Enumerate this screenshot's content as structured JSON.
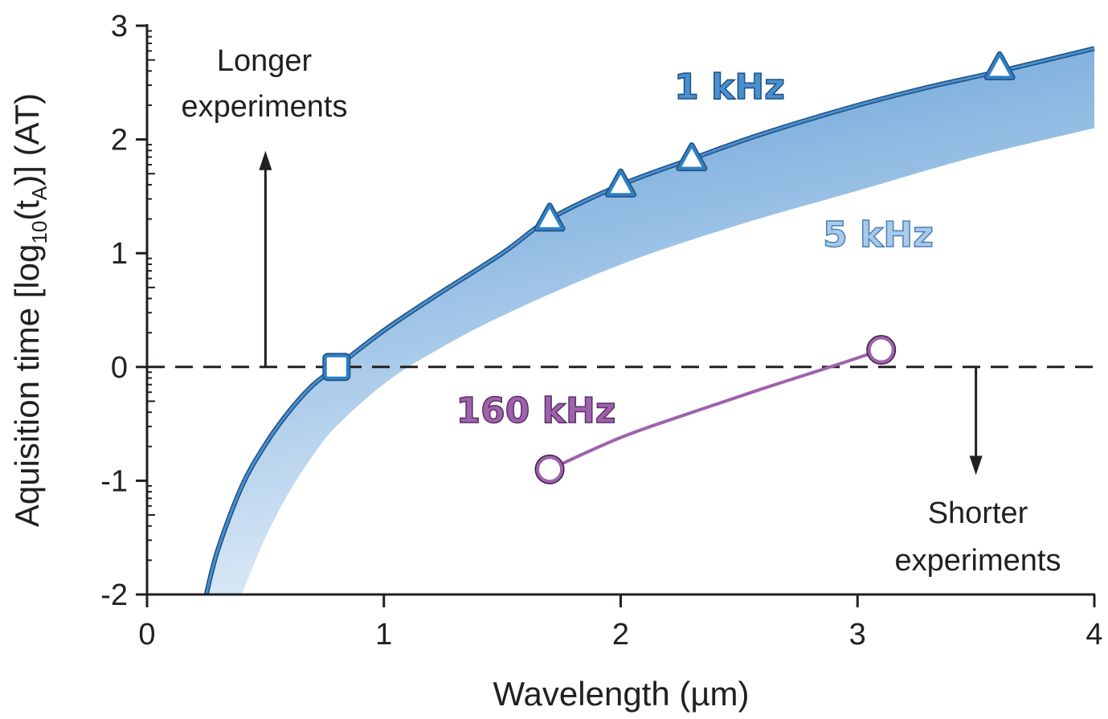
{
  "chart_data": {
    "type": "line",
    "title": "",
    "xlabel": "Wavelength (µm)",
    "ylabel_parts": {
      "pre": "Aquisition time [log",
      "sub1": "10",
      "mid": "(t",
      "sub2": "A",
      "post": ")] (AT)"
    },
    "xlim": [
      0,
      4
    ],
    "ylim": [
      -2,
      3
    ],
    "x_ticks": [
      "0",
      "1",
      "2",
      "3",
      "4"
    ],
    "y_ticks": [
      "-2",
      "-1",
      "0",
      "1",
      "2",
      "3"
    ],
    "reference_line": {
      "y": 0,
      "style": "dashed"
    },
    "series": [
      {
        "name": "1 kHz",
        "color": "#4a8fd0",
        "marker_color": "#2f7fc4",
        "curve_x": [
          0.25,
          0.3,
          0.4,
          0.5,
          0.6,
          0.7,
          0.8,
          1.0,
          1.2,
          1.5,
          1.7,
          2.0,
          2.3,
          2.6,
          3.0,
          3.3,
          3.6,
          4.0
        ],
        "curve_y": [
          -2.0,
          -1.6,
          -1.05,
          -0.68,
          -0.39,
          -0.16,
          0.0,
          0.32,
          0.6,
          1.0,
          1.3,
          1.6,
          1.83,
          2.05,
          2.3,
          2.46,
          2.6,
          2.8
        ],
        "markers": [
          {
            "x": 0.8,
            "y": 0.0,
            "shape": "square"
          },
          {
            "x": 1.7,
            "y": 1.3,
            "shape": "triangle"
          },
          {
            "x": 2.0,
            "y": 1.6,
            "shape": "triangle"
          },
          {
            "x": 2.3,
            "y": 1.83,
            "shape": "triangle"
          },
          {
            "x": 3.6,
            "y": 2.63,
            "shape": "triangle"
          }
        ]
      },
      {
        "name": "5 kHz",
        "color": "#a9cbeb",
        "curve_x": [
          0.4,
          0.5,
          0.6,
          0.7,
          0.8,
          1.0,
          1.2,
          1.5,
          2.0,
          2.5,
          3.0,
          3.5,
          4.0
        ],
        "curve_y": [
          -2.0,
          -1.5,
          -1.1,
          -0.78,
          -0.52,
          -0.15,
          0.12,
          0.45,
          0.9,
          1.25,
          1.55,
          1.85,
          2.1
        ]
      },
      {
        "name": "160 kHz",
        "color": "#9e62ad",
        "curve_x": [
          1.7,
          2.0,
          2.3,
          2.6,
          2.9,
          3.1
        ],
        "curve_y": [
          -0.9,
          -0.62,
          -0.4,
          -0.19,
          0.01,
          0.15
        ],
        "markers": [
          {
            "x": 1.7,
            "y": -0.9,
            "shape": "circle"
          },
          {
            "x": 3.1,
            "y": 0.15,
            "shape": "circle"
          }
        ]
      }
    ],
    "annotations": {
      "up": {
        "lines": [
          "Longer",
          "experiments"
        ],
        "arrow_x": 0.5,
        "arrow_from_y": 0.0,
        "arrow_to_y": 1.9
      },
      "down": {
        "lines": [
          "Shorter",
          "experiments"
        ],
        "arrow_x": 3.5,
        "arrow_from_y": 0.0,
        "arrow_to_y": -0.95
      }
    }
  }
}
